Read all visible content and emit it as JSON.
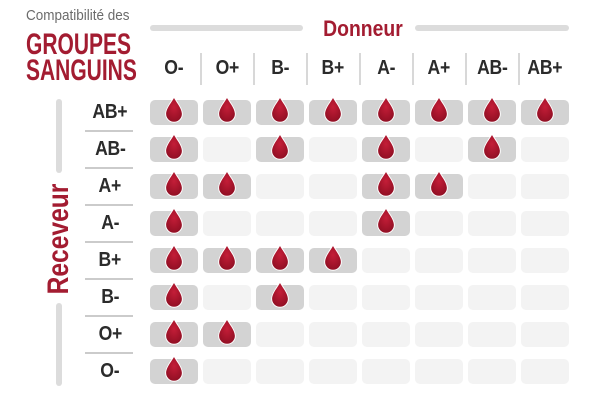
{
  "title": {
    "kicker": "Compatibilité des",
    "line1": "GROUPES",
    "line2": "SANGUINS"
  },
  "chart_data": {
    "type": "heatmap",
    "title": "Compatibilité des groupes sanguins",
    "x_axis_label": "Donneur",
    "y_axis_label": "Receveur",
    "x_categories": [
      "O-",
      "O+",
      "B-",
      "B+",
      "A-",
      "A+",
      "AB-",
      "AB+"
    ],
    "y_categories": [
      "AB+",
      "AB-",
      "A+",
      "A-",
      "B+",
      "B-",
      "O+",
      "O-"
    ],
    "values": [
      [
        1,
        1,
        1,
        1,
        1,
        1,
        1,
        1
      ],
      [
        1,
        0,
        1,
        0,
        1,
        0,
        1,
        0
      ],
      [
        1,
        1,
        0,
        0,
        1,
        1,
        0,
        0
      ],
      [
        1,
        0,
        0,
        0,
        1,
        0,
        0,
        0
      ],
      [
        1,
        1,
        1,
        1,
        0,
        0,
        0,
        0
      ],
      [
        1,
        0,
        1,
        0,
        0,
        0,
        0,
        0
      ],
      [
        1,
        1,
        0,
        0,
        0,
        0,
        0,
        0
      ],
      [
        1,
        0,
        0,
        0,
        0,
        0,
        0,
        0
      ]
    ],
    "value_meaning": {
      "1": "compatible - blood-drop icon shown",
      "0": "incompatible - empty cell"
    },
    "legend_position": "none",
    "grid": "off"
  },
  "icons": {
    "compatible_marker": "blood-drop-icon"
  },
  "colors": {
    "accent_red": "#a31c31",
    "drop_red_light": "#c41e38",
    "drop_red_mid": "#a8152c",
    "drop_red_dark": "#8a0e22",
    "kicker_gray": "#6b6b6b",
    "header_text": "#2b2b2b",
    "filled_cell": "#d3d3d3",
    "empty_cell": "#f3f3f3",
    "axis_bar_gray": "#dcdcdc",
    "divider_gray": "#cbcbcb"
  }
}
